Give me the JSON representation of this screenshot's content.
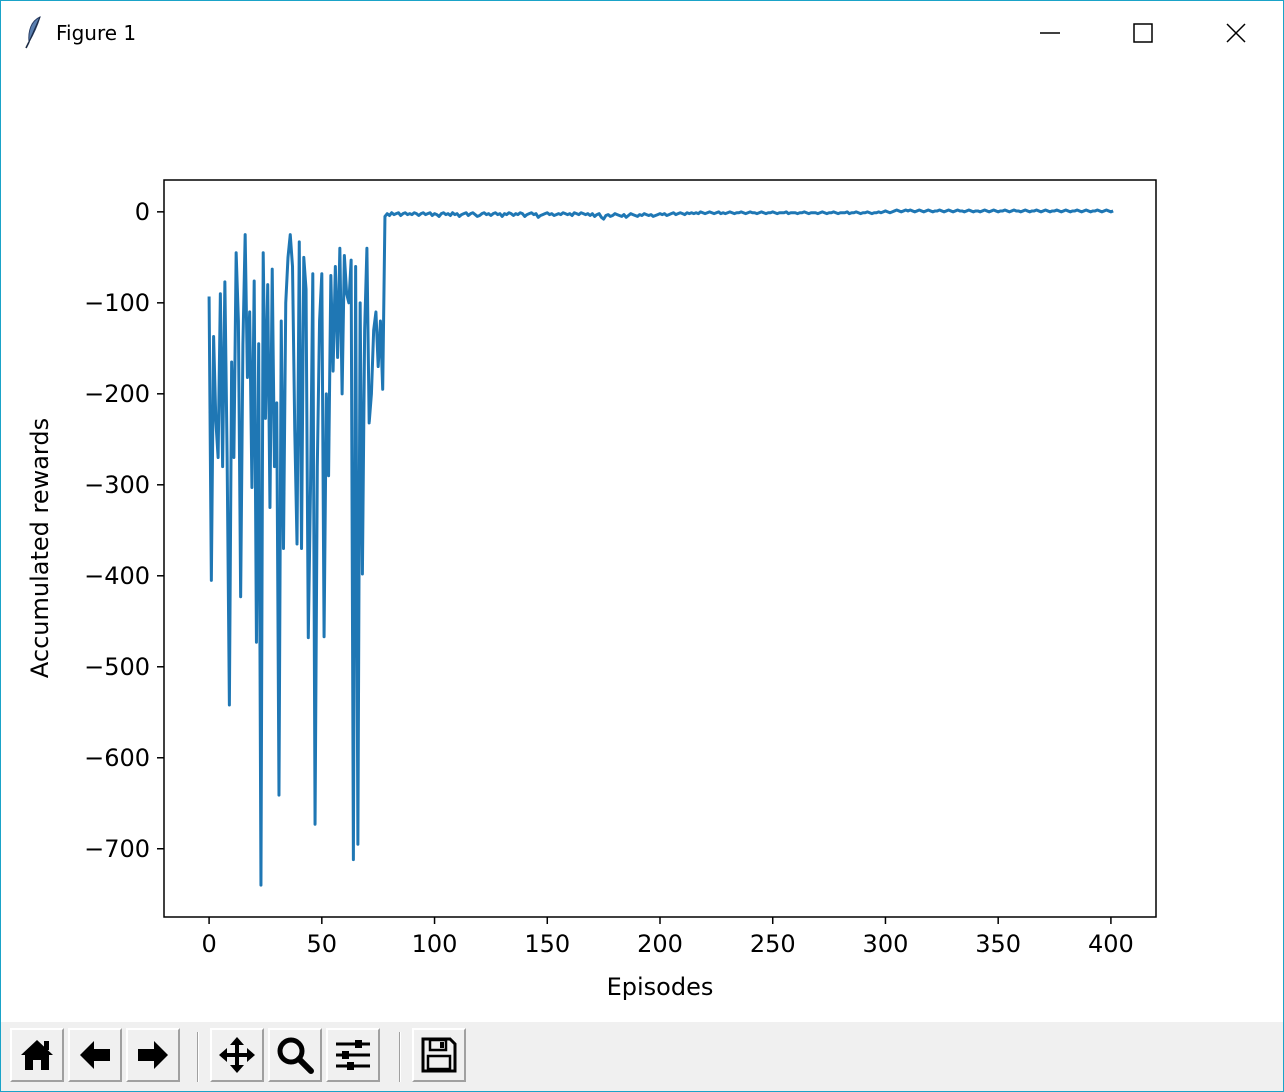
{
  "window": {
    "title": "Figure 1",
    "icons": [
      "feather-icon",
      "minimize-icon",
      "maximize-icon",
      "close-icon"
    ]
  },
  "toolbar": {
    "buttons": [
      {
        "name": "home-button",
        "icon": "home-icon"
      },
      {
        "name": "back-button",
        "icon": "arrow-left-icon"
      },
      {
        "name": "forward-button",
        "icon": "arrow-right-icon"
      },
      {
        "name": "pan-button",
        "icon": "move-icon"
      },
      {
        "name": "zoom-button",
        "icon": "magnifier-icon"
      },
      {
        "name": "subplots-button",
        "icon": "sliders-icon"
      },
      {
        "name": "save-button",
        "icon": "floppy-disk-icon"
      }
    ]
  },
  "chart_data": {
    "type": "line",
    "xlabel": "Episodes",
    "ylabel": "Accumulated rewards",
    "xlim": [
      -20,
      420
    ],
    "ylim": [
      -775,
      35
    ],
    "xticks": [
      0,
      50,
      100,
      150,
      200,
      250,
      300,
      350,
      400
    ],
    "yticks": [
      0,
      -100,
      -200,
      -300,
      -400,
      -500,
      -600,
      -700
    ],
    "xtick_labels": [
      "0",
      "50",
      "100",
      "150",
      "200",
      "250",
      "300",
      "350",
      "400"
    ],
    "ytick_labels": [
      "0",
      "−100",
      "−200",
      "−300",
      "−400",
      "−500",
      "−600",
      "−700"
    ],
    "grid": false,
    "series": [
      {
        "color": "#1f77b4",
        "x_start": 0,
        "values": [
          -93,
          -405,
          -137,
          -230,
          -270,
          -90,
          -280,
          -77,
          -270,
          -542,
          -165,
          -270,
          -45,
          -120,
          -423,
          -146,
          -25,
          -182,
          -110,
          -303,
          -76,
          -473,
          -145,
          -740,
          -45,
          -227,
          -80,
          -325,
          -63,
          -280,
          -210,
          -641,
          -120,
          -370,
          -100,
          -50,
          -25,
          -60,
          -240,
          -365,
          -33,
          -370,
          -50,
          -85,
          -468,
          -300,
          -68,
          -673,
          -280,
          -120,
          -68,
          -467,
          -200,
          -290,
          -70,
          -175,
          -60,
          -160,
          -40,
          -200,
          -48,
          -90,
          -100,
          -53,
          -712,
          -60,
          -695,
          -100,
          -398,
          -130,
          -40,
          -232,
          -200,
          -130,
          -110,
          -170,
          -120,
          -195,
          -5,
          -2,
          -4,
          -1,
          -3,
          -2,
          -1,
          -4,
          -2,
          -1,
          -3,
          -2,
          -3,
          -1,
          -2,
          -4,
          -2,
          -1,
          -3,
          -2,
          -1,
          -4,
          -2,
          -3,
          -5,
          -2,
          -1,
          -3,
          -2,
          -4,
          -1,
          -3,
          -2,
          -5,
          -3,
          -2,
          -1,
          -4,
          -2,
          -1,
          -3,
          -5,
          -4,
          -2,
          -1,
          -3,
          -2,
          -4,
          -2,
          -1,
          -3,
          -2,
          -5,
          -2,
          -3,
          -1,
          -2,
          -4,
          -2,
          -3,
          -1,
          -2,
          -5,
          -3,
          -2,
          -1,
          -3,
          -2,
          -6,
          -4,
          -3,
          -2,
          -1,
          -3,
          -2,
          -4,
          -3,
          -2,
          -3,
          -1,
          -2,
          -3,
          -2,
          -4,
          -1,
          -2,
          -3,
          -1,
          -2,
          -3,
          -2,
          -4,
          -2,
          -5,
          -3,
          -2,
          -6,
          -8,
          -4,
          -3,
          -5,
          -4,
          -2,
          -3,
          -4,
          -5,
          -3,
          -6,
          -4,
          -2,
          -3,
          -4,
          -5,
          -3,
          -4,
          -2,
          -3,
          -4,
          -3,
          -5,
          -4,
          -3,
          -2,
          -3,
          -2,
          -4,
          -3,
          -2,
          -1,
          -3,
          -2,
          -1,
          -2,
          -3,
          -1,
          -2,
          -1,
          -2,
          -1,
          -2,
          0,
          -1,
          -2,
          -1,
          0,
          -1,
          -2,
          -1,
          0,
          -2,
          -1,
          -2,
          -1,
          0,
          -1,
          -2,
          -1,
          -1,
          0,
          -1,
          -2,
          -1,
          0,
          -1,
          -1,
          -2,
          -1,
          0,
          -1,
          -2,
          -1,
          -1,
          0,
          -1,
          -2,
          -1,
          -1,
          -1,
          0,
          -2,
          -1,
          -1,
          -1,
          -2,
          -1,
          -1,
          0,
          -1,
          -2,
          -1,
          -1,
          -1,
          -2,
          -1,
          0,
          -1,
          -2,
          -1,
          -1,
          0,
          -1,
          -2,
          -1,
          -1,
          -1,
          0,
          -2,
          -1,
          -1,
          0,
          -1,
          -2,
          -1,
          -1,
          0,
          -1,
          -2,
          -1,
          -1,
          0,
          -1,
          0,
          1,
          0,
          -1,
          0,
          1,
          2,
          1,
          0,
          1,
          2,
          1,
          2,
          1,
          0,
          1,
          2,
          1,
          0,
          1,
          2,
          1,
          0,
          1,
          1,
          2,
          1,
          0,
          1,
          2,
          1,
          0,
          1,
          2,
          1,
          1,
          0,
          1,
          2,
          1,
          0,
          1,
          1,
          0,
          1,
          2,
          1,
          0,
          1,
          2,
          1,
          0,
          1,
          1,
          2,
          1,
          0,
          1,
          2,
          1,
          1,
          0,
          1,
          2,
          1,
          0,
          1,
          1,
          2,
          1,
          0,
          1,
          2,
          1,
          0,
          1,
          1,
          2,
          1,
          0,
          1,
          2,
          1,
          0,
          1,
          1,
          2,
          1,
          0,
          1,
          2,
          1,
          0,
          1,
          1,
          2,
          1,
          0,
          1,
          2,
          1,
          0,
          1
        ]
      }
    ]
  }
}
